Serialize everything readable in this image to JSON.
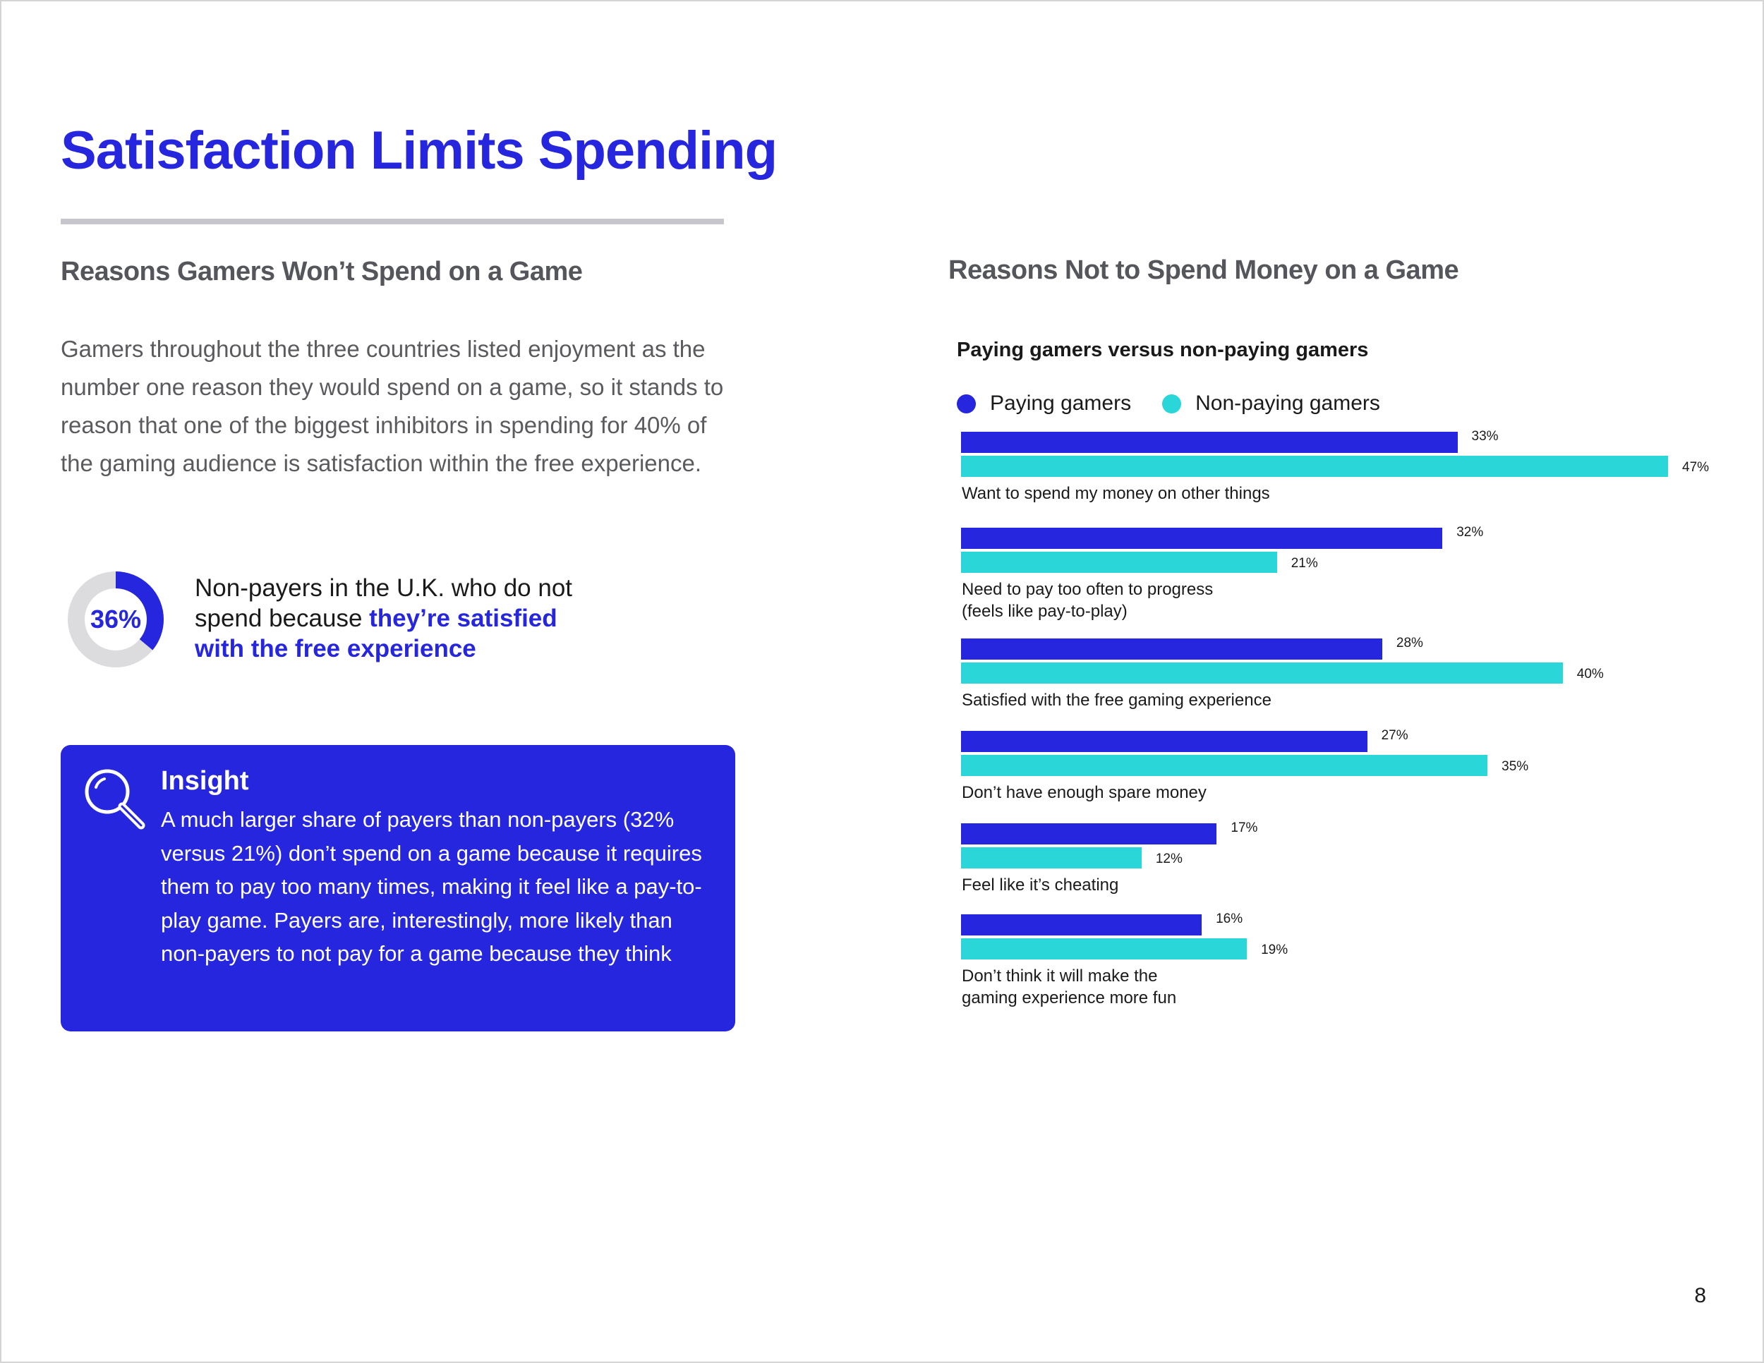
{
  "header": {
    "title": "Satisfaction Limits Spending"
  },
  "left": {
    "heading": "Reasons Gamers Won’t Spend on a Game",
    "body": "Gamers throughout the three countries listed enjoyment as the number one reason they would spend on a game, so it stands to reason that one of the biggest inhibitors in spending for 40% of the gaming audience is satisfaction within the free experience.",
    "stat": {
      "value": 36,
      "value_label": "36%",
      "text_plain": "Non-payers in the U.K. who do not spend because ",
      "text_highlight": "they’re satisfied with the free experience"
    },
    "insight": {
      "title": "Insight",
      "text": "A much larger share of payers than non-payers (32% versus 21%) don’t spend on a game because it requires them to pay too many times, making it feel like a pay-to-play game. Payers are, interestingly, more likely than non-payers to not pay for a game because they think"
    }
  },
  "right": {
    "heading": "Reasons Not to Spend Money on a Game",
    "subtitle": "Paying gamers versus non-paying gamers"
  },
  "colors": {
    "paying": "#2626de",
    "nonpaying": "#2bd6d8",
    "donut_track": "#dcdcdf"
  },
  "chart_data": {
    "type": "bar",
    "orientation": "horizontal",
    "title": "Reasons Not to Spend Money on a Game",
    "subtitle": "Paying gamers versus non-paying gamers",
    "categories": [
      "Want to spend my money on other things",
      "Need to pay too often to progress\n(feels like pay-to-play)",
      "Satisfied with the free gaming experience",
      "Don’t have enough spare money",
      "Feel like it’s cheating",
      "Don’t think it will make the\ngaming experience more fun"
    ],
    "series": [
      {
        "name": "Paying gamers",
        "values": [
          33,
          32,
          28,
          27,
          17,
          16
        ],
        "labels": [
          "33%",
          "32%",
          "28%",
          "27%",
          "17%",
          "16%"
        ]
      },
      {
        "name": "Non-paying gamers",
        "values": [
          47,
          21,
          40,
          35,
          12,
          19
        ],
        "labels": [
          "47%",
          "21%",
          "40%",
          "35%",
          "12%",
          "19%"
        ]
      }
    ],
    "xlim": [
      0,
      50
    ],
    "legend": "top-left",
    "grid": false
  },
  "footer": {
    "page_number": "8"
  }
}
